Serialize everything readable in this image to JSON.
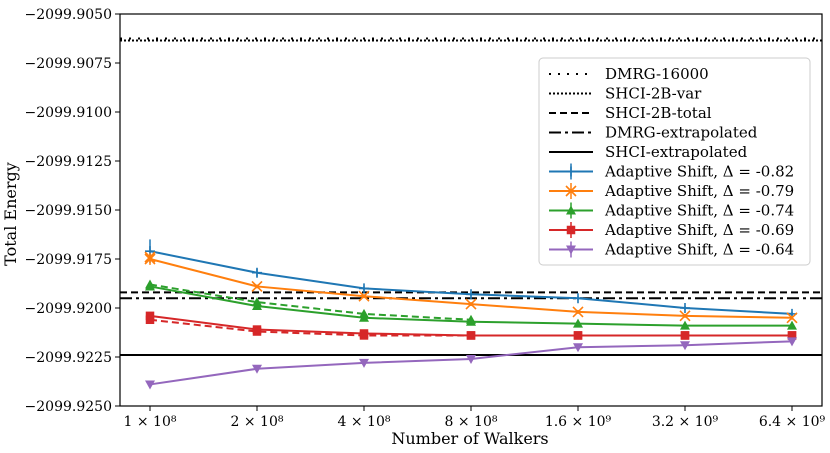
{
  "chart_data": {
    "type": "line",
    "xlabel": "Number of Walkers",
    "ylabel": "Total Energy",
    "x_scale": "log",
    "x": [
      100000000,
      200000000,
      400000000,
      800000000,
      1600000000,
      3200000000,
      6400000000
    ],
    "x_tick_labels": [
      "1 × 10⁸",
      "2 × 10⁸",
      "4 × 10⁸",
      "8 × 10⁸",
      "1.6 × 10⁹",
      "3.2 × 10⁹",
      "6.4 × 10⁹"
    ],
    "ylim": [
      -2099.925,
      -2099.905
    ],
    "y_ticks": [
      -2099.925,
      -2099.9225,
      -2099.92,
      -2099.9175,
      -2099.915,
      -2099.9125,
      -2099.91,
      -2099.9075,
      -2099.905
    ],
    "y_tick_labels": [
      "−2099.9250",
      "−2099.9225",
      "−2099.9200",
      "−2099.9175",
      "−2099.9150",
      "−2099.9125",
      "−2099.9100",
      "−2099.9075",
      "−2099.9050"
    ],
    "grid": false,
    "legend_position": "upper right",
    "reference_lines": [
      {
        "name": "DMRG-16000",
        "y": -2099.90625,
        "style": "dotted-sparse"
      },
      {
        "name": "SHCI-2B-var",
        "y": -2099.90635,
        "style": "dotted"
      },
      {
        "name": "SHCI-2B-total",
        "y": -2099.9192,
        "style": "dashed"
      },
      {
        "name": "DMRG-extrapolated",
        "y": -2099.9195,
        "style": "dashdot"
      },
      {
        "name": "SHCI-extrapolated",
        "y": -2099.9224,
        "style": "solid"
      }
    ],
    "series": [
      {
        "name": "Adaptive Shift, Δ = -0.82",
        "color": "#1f77b4",
        "marker": "plus",
        "solid": [
          -2099.9171,
          -2099.9182,
          -2099.919,
          -2099.9193,
          -2099.9195,
          -2099.92,
          -2099.9203
        ],
        "err": [
          0.0006,
          0.0002,
          0.0001,
          0.0001,
          0.0001,
          0.0001,
          0.0001
        ]
      },
      {
        "name": "Adaptive Shift, Δ = -0.79",
        "color": "#ff7f0e",
        "marker": "x",
        "solid": [
          -2099.9175,
          -2099.9189,
          -2099.9194,
          -2099.9198,
          -2099.9202,
          -2099.9204,
          -2099.9205
        ],
        "dashed": [
          -2099.9174,
          null,
          null,
          null,
          null,
          null,
          null
        ],
        "err": [
          0.0003,
          0.0001,
          0.0001,
          0.0001,
          0.0001,
          0.0001,
          0.0001
        ]
      },
      {
        "name": "Adaptive Shift, Δ = -0.74",
        "color": "#2ca02c",
        "marker": "triangle-up",
        "solid": [
          -2099.9189,
          -2099.9199,
          -2099.9205,
          -2099.9207,
          -2099.9208,
          -2099.9209,
          -2099.9209
        ],
        "dashed": [
          -2099.9188,
          -2099.9197,
          -2099.9203,
          -2099.9206,
          null,
          null,
          null
        ],
        "err": [
          0.0002,
          0.0001,
          0.0001,
          0.0001,
          0.0001,
          0.0001,
          0.0001
        ]
      },
      {
        "name": "Adaptive Shift, Δ = -0.69",
        "color": "#d62728",
        "marker": "square",
        "solid": [
          -2099.9204,
          -2099.9211,
          -2099.9213,
          -2099.9214,
          -2099.9214,
          -2099.9214,
          -2099.9214
        ],
        "dashed": [
          -2099.9206,
          -2099.9212,
          -2099.9214,
          -2099.9214,
          -2099.9214,
          -2099.9214,
          -2099.9214
        ],
        "err": [
          0.0001,
          0.0001,
          0.0001,
          0.0001,
          0.0001,
          0.0001,
          0.0001
        ]
      },
      {
        "name": "Adaptive Shift, Δ = -0.64",
        "color": "#9467bd",
        "marker": "triangle-down",
        "solid": [
          -2099.9239,
          -2099.9231,
          -2099.9228,
          -2099.9226,
          -2099.922,
          -2099.9219,
          -2099.9217
        ],
        "err": [
          0.0001,
          0.0001,
          0.0001,
          0.0001,
          0.0001,
          0.0001,
          0.0001
        ]
      }
    ]
  }
}
